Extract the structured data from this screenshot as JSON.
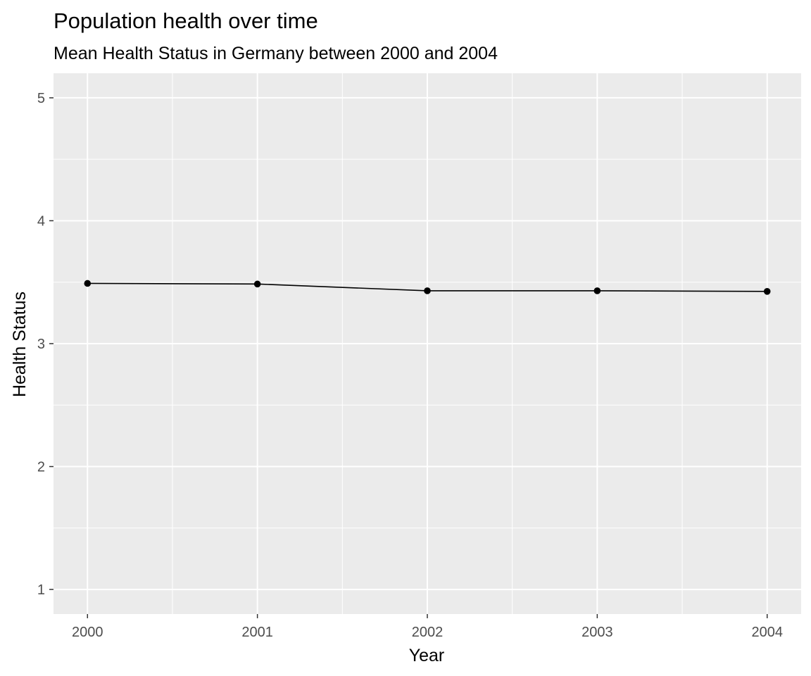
{
  "chart_data": {
    "type": "line",
    "title": "Population health over time",
    "subtitle": "Mean Health Status in Germany between 2000 and 2004",
    "xlabel": "Year",
    "ylabel": "Health Status",
    "x": [
      2000,
      2001,
      2002,
      2003,
      2004
    ],
    "series": [
      {
        "values": [
          3.49,
          3.485,
          3.43,
          3.43,
          3.425
        ]
      }
    ],
    "xlim": [
      1999.8,
      2004.2
    ],
    "ylim": [
      0.8,
      5.2
    ],
    "x_ticks": [
      "2000",
      "2001",
      "2002",
      "2003",
      "2004"
    ],
    "y_ticks": [
      "1",
      "2",
      "3",
      "4",
      "5"
    ],
    "grid": true,
    "legend": "none",
    "colors": {
      "panel_background": "#EBEBEB",
      "grid_line": "#FFFFFF",
      "series_line": "#000000",
      "point": "#000000",
      "tick_label": "#4D4D4D",
      "tick_mark": "#333333"
    }
  }
}
